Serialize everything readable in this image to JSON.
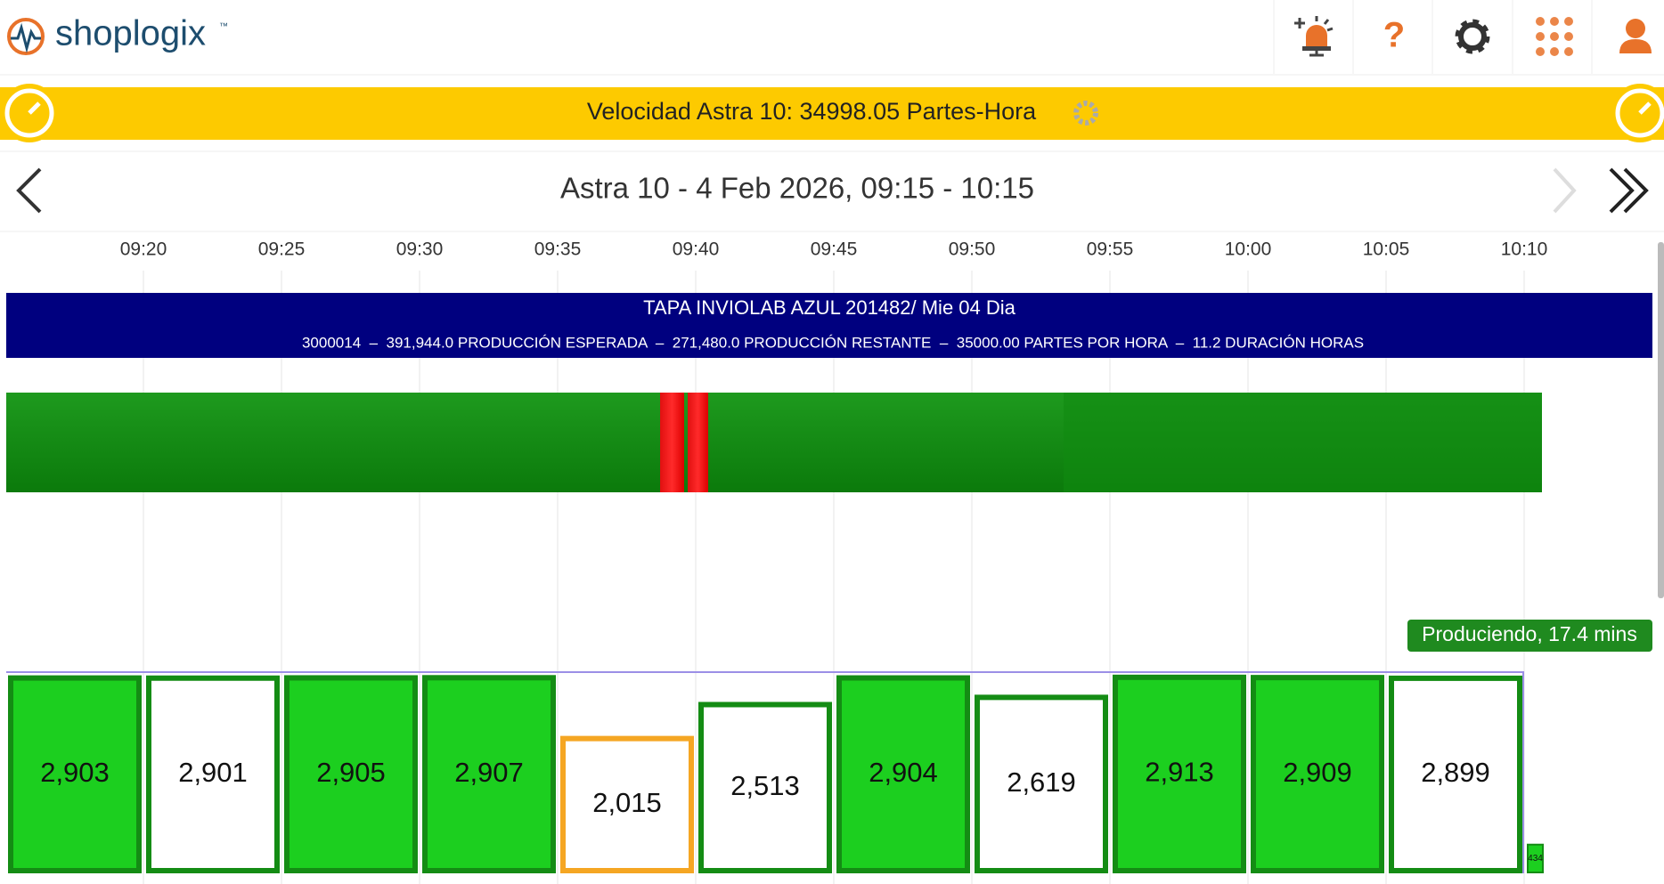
{
  "header": {
    "logo": "shoplogix",
    "trademark": "™"
  },
  "banner": {
    "text": "Velocidad Astra 10: 34998.05 Partes-Hora"
  },
  "nav": {
    "title": "Astra 10 - 4 Feb 2026, 09:15 - 10:15"
  },
  "timeline": {
    "ticks": [
      "09:20",
      "09:25",
      "09:30",
      "09:35",
      "09:40",
      "09:45",
      "09:50",
      "09:55",
      "10:00",
      "10:05",
      "10:10"
    ]
  },
  "job": {
    "title": "TAPA INVIOLAB AZUL 201482/ Mie 04 Dia",
    "details": "3000014  –  391,944.0 PRODUCCIÓN ESPERADA  –  271,480.0 PRODUCCIÓN RESTANTE  –  35000.00 PARTES POR HORA  –  11.2 DURACIÓN HORAS"
  },
  "status": {
    "label": "Produciendo, 17.4 mins"
  },
  "counts": {
    "ylim": [
      0,
      2950
    ],
    "bars": [
      {
        "value": 2903,
        "label": "2,903",
        "fill": "#1ccf1f",
        "border": "#148c14"
      },
      {
        "value": 2901,
        "label": "2,901",
        "fill": "#ffffff",
        "border": "#148c14"
      },
      {
        "value": 2905,
        "label": "2,905",
        "fill": "#1ccf1f",
        "border": "#148c14"
      },
      {
        "value": 2907,
        "label": "2,907",
        "fill": "#1ccf1f",
        "border": "#148c14"
      },
      {
        "value": 2015,
        "label": "2,015",
        "fill": "#ffffff",
        "border": "#f5a623"
      },
      {
        "value": 2513,
        "label": "2,513",
        "fill": "#ffffff",
        "border": "#148c14"
      },
      {
        "value": 2904,
        "label": "2,904",
        "fill": "#1ccf1f",
        "border": "#148c14"
      },
      {
        "value": 2619,
        "label": "2,619",
        "fill": "#ffffff",
        "border": "#148c14"
      },
      {
        "value": 2913,
        "label": "2,913",
        "fill": "#1ccf1f",
        "border": "#148c14"
      },
      {
        "value": 2909,
        "label": "2,909",
        "fill": "#1ccf1f",
        "border": "#148c14"
      },
      {
        "value": 2899,
        "label": "2,899",
        "fill": "#ffffff",
        "border": "#148c14"
      },
      {
        "value": 434,
        "label": "434",
        "fill": "#1ccf1f",
        "border": "#148c14"
      }
    ]
  }
}
